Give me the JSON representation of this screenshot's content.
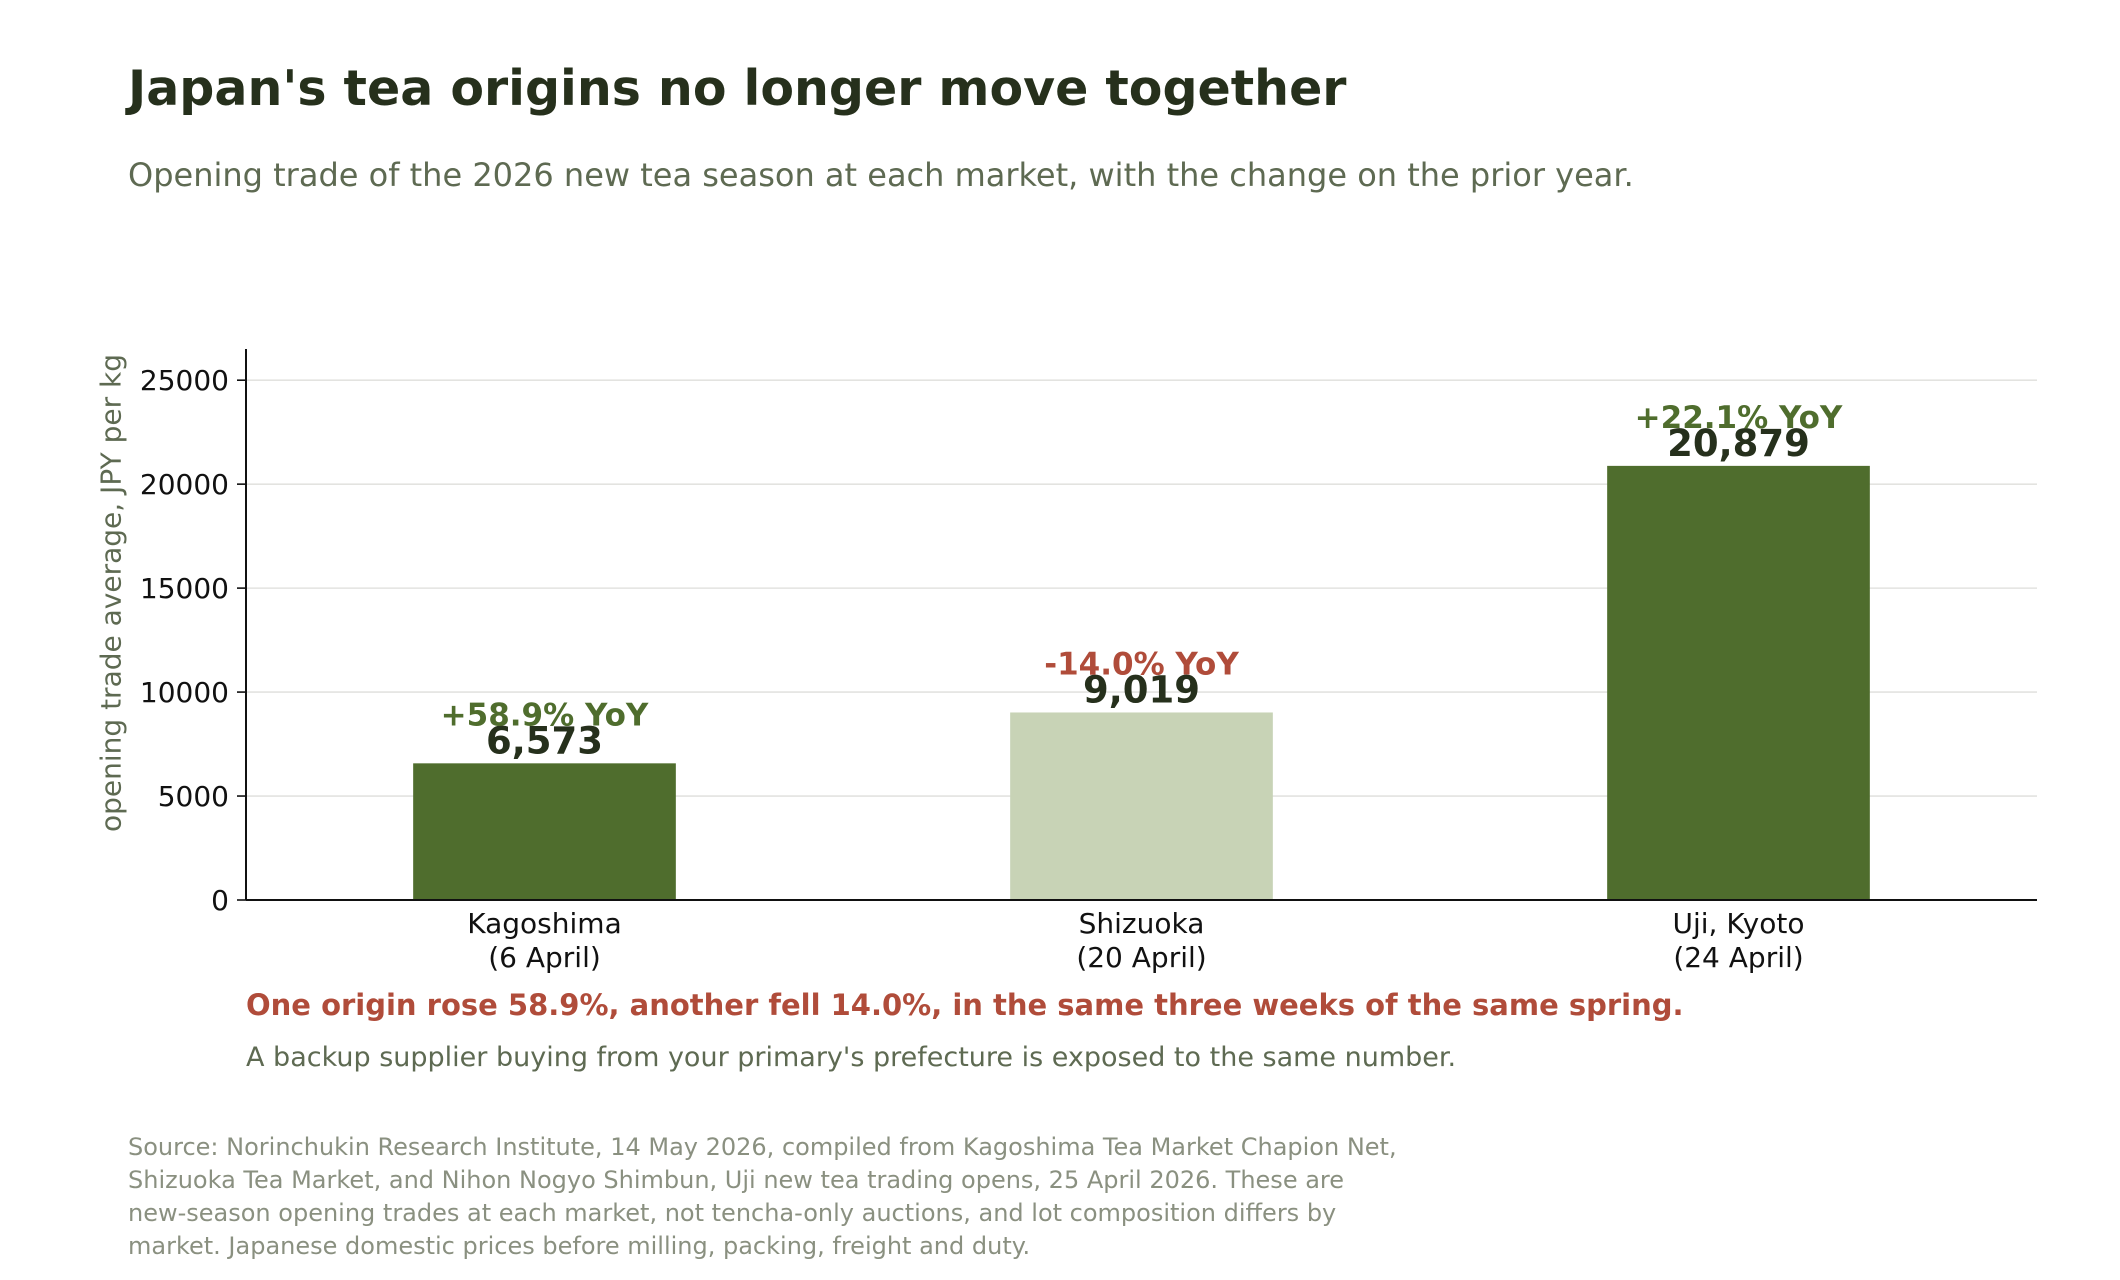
{
  "title": "Japan's tea origins no longer move together",
  "subtitle": "Opening trade of the 2026 new tea season at each market, with the change on the prior year.",
  "chart_data": {
    "type": "bar",
    "categories": [
      [
        "Kagoshima",
        "(6 April)"
      ],
      [
        "Shizuoka",
        "(20 April)"
      ],
      [
        "Uji, Kyoto",
        "(24 April)"
      ]
    ],
    "values": [
      6573,
      9019,
      20879
    ],
    "value_labels": [
      "6,573",
      "9,019",
      "20,879"
    ],
    "yoy_labels": [
      "+58.9% YoY",
      "-14.0% YoY",
      "+22.1% YoY"
    ],
    "yoy_direction": [
      "up",
      "down",
      "up"
    ],
    "ylabel": "opening trade average, JPY per kg",
    "xlabel": "",
    "ylim": [
      0,
      26500
    ],
    "yticks": [
      0,
      5000,
      10000,
      15000,
      20000,
      25000
    ],
    "grid": true,
    "legend": "none"
  },
  "colors": {
    "bar_up": "#4f6d2d",
    "bar_down": "#c8d3b6",
    "yoy_up": "#4f6d2d",
    "yoy_down": "#b04c3a",
    "value_label": "#26301c",
    "gridline": "#e3e3e0"
  },
  "takeaway": "One origin rose 58.9%, another fell 14.0%, in the same three weeks of the same spring.",
  "takeaway_sub": "A backup supplier buying from your primary's prefecture is exposed to the same number.",
  "source_lines": [
    "Source: Norinchukin Research Institute, 14 May 2026, compiled from Kagoshima Tea Market Chapion Net,",
    "Shizuoka Tea Market, and Nihon Nogyo Shimbun, Uji new tea trading opens, 25 April 2026. These are",
    "new-season opening trades at each market, not tencha-only auctions, and lot composition differs by",
    "market. Japanese domestic prices before milling, packing, freight and duty."
  ]
}
